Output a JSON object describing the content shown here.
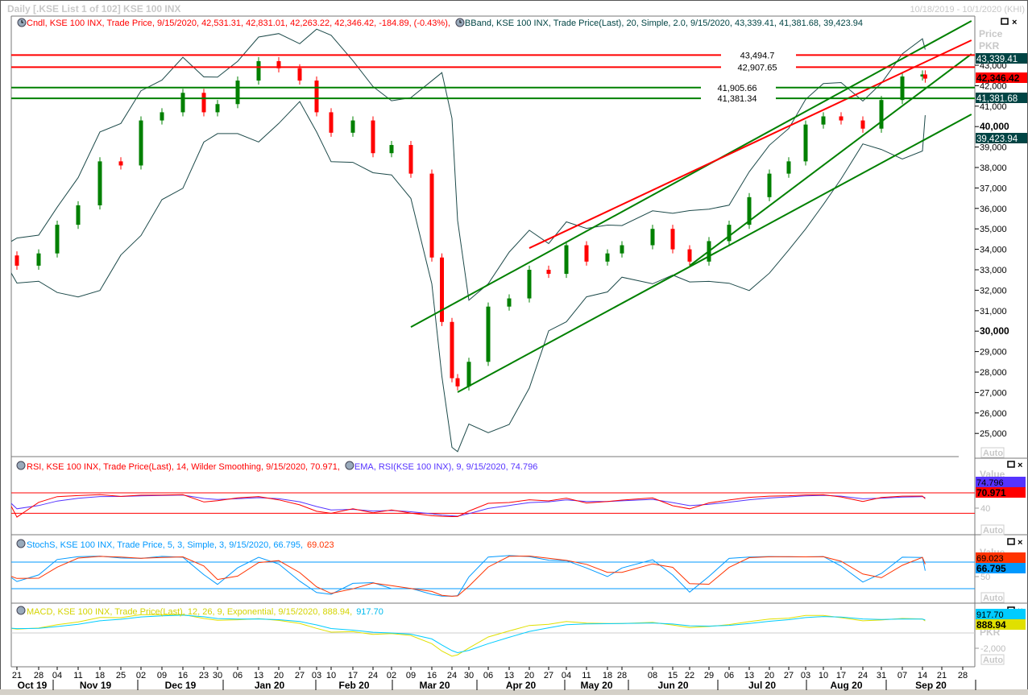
{
  "window": {
    "title": "Daily [.KSE List 1 of 102] KSE 100 INX",
    "date_range": "10/18/2019 - 10/1/2020 (KHI)"
  },
  "legends": {
    "candle": "Cndl, KSE 100 INX, Trade Price, 9/15/2020, 42,531.31, 42,831.01, 42,263.22, 42,346.42, -184.89, (-0.43%),",
    "bband": "BBand, KSE 100 INX, Trade Price(Last),  20, Simple, 2.0, 9/15/2020, 43,339.41, 41,381.68, 39,423.94",
    "rsi": "RSI, KSE 100 INX, Trade Price(Last),  14, Wilder Smoothing, 9/15/2020, 70.971,",
    "ema": "EMA, RSI(KSE 100 INX),  9, 9/15/2020, 74.796",
    "stoch": "StochS, KSE 100 INX, Trade Price,  5, 3, Simple, 3, 9/15/2020, 66.795,",
    "stoch_d": "69.023",
    "macd": "MACD, KSE 100 INX, Trade Price(Last),  12, 26, 9, Exponential, 9/15/2020, 888.94,",
    "macd_signal": "917.70"
  },
  "axes": {
    "price_title": "Price",
    "price_unit": "PKR",
    "price_ticks": [
      "43,000",
      "42,000",
      "41,000",
      "40,000",
      "39,000",
      "38,000",
      "37,000",
      "36,000",
      "35,000",
      "34,000",
      "33,000",
      "32,000",
      "31,000",
      "30,000",
      "29,000",
      "28,000",
      "27,000",
      "26,000",
      "25,000"
    ],
    "value_title": "Value",
    "rsi_tick": "40",
    "stoch_tick": "50",
    "macd_unit": "PKR",
    "macd_tick": "-2,000",
    "auto_label": "Auto"
  },
  "value_tags": {
    "bb_upper": "43,339.41",
    "last_price": "42,346.42",
    "bb_middle": "41,381.68",
    "bb_lower": "39,423.94",
    "ema": "74.796",
    "rsi": "70.971",
    "stoch_d": "69.023",
    "stoch_k": "66.795",
    "macd_signal": "917.70",
    "macd": "888.94"
  },
  "colors": {
    "up": "#008000",
    "down": "#ff0000",
    "bband": "#1d4a4a",
    "tag_bg": "#004444",
    "rsi": "#ff0000",
    "ema": "#5533ff",
    "stoch_k": "#0099ff",
    "stoch_d": "#ff3300",
    "macd": "#e0e000",
    "macd_signal": "#00ccff"
  },
  "x_axis": {
    "ticks": [
      {
        "d": "2019-10-21",
        "label": "21"
      },
      {
        "d": "2019-10-28",
        "label": "28"
      },
      {
        "d": "2019-11-04",
        "label": "04"
      },
      {
        "d": "2019-11-11",
        "label": "11"
      },
      {
        "d": "2019-11-18",
        "label": "18"
      },
      {
        "d": "2019-11-25",
        "label": "25"
      },
      {
        "d": "2019-12-02",
        "label": "02"
      },
      {
        "d": "2019-12-09",
        "label": "09"
      },
      {
        "d": "2019-12-16",
        "label": "16"
      },
      {
        "d": "2019-12-23",
        "label": "23"
      },
      {
        "d": "2019-12-30",
        "label": "30"
      },
      {
        "d": "2020-01-06",
        "label": "06"
      },
      {
        "d": "2020-01-13",
        "label": "13"
      },
      {
        "d": "2020-01-20",
        "label": "20"
      },
      {
        "d": "2020-01-27",
        "label": "27"
      },
      {
        "d": "2020-02-03",
        "label": "03"
      },
      {
        "d": "2020-02-10",
        "label": "10"
      },
      {
        "d": "2020-02-17",
        "label": "17"
      },
      {
        "d": "2020-02-24",
        "label": "24"
      },
      {
        "d": "2020-03-02",
        "label": "02"
      },
      {
        "d": "2020-03-09",
        "label": "09"
      },
      {
        "d": "2020-03-16",
        "label": "16"
      },
      {
        "d": "2020-03-24",
        "label": "24"
      },
      {
        "d": "2020-03-30",
        "label": "30"
      },
      {
        "d": "2020-04-06",
        "label": "06"
      },
      {
        "d": "2020-04-13",
        "label": "13"
      },
      {
        "d": "2020-04-20",
        "label": "20"
      },
      {
        "d": "2020-04-27",
        "label": "27"
      },
      {
        "d": "2020-05-04",
        "label": "04"
      },
      {
        "d": "2020-05-11",
        "label": "11"
      },
      {
        "d": "2020-05-18",
        "label": "18"
      },
      {
        "d": "2020-05-28",
        "label": "28"
      },
      {
        "d": "2020-06-08",
        "label": "08"
      },
      {
        "d": "2020-06-15",
        "label": "15"
      },
      {
        "d": "2020-06-22",
        "label": "22"
      },
      {
        "d": "2020-06-29",
        "label": "29"
      },
      {
        "d": "2020-07-06",
        "label": "06"
      },
      {
        "d": "2020-07-13",
        "label": "13"
      },
      {
        "d": "2020-07-20",
        "label": "20"
      },
      {
        "d": "2020-07-27",
        "label": "27"
      },
      {
        "d": "2020-08-03",
        "label": "03"
      },
      {
        "d": "2020-08-10",
        "label": "10"
      },
      {
        "d": "2020-08-17",
        "label": "17"
      },
      {
        "d": "2020-08-24",
        "label": "24"
      },
      {
        "d": "2020-08-31",
        "label": "31"
      },
      {
        "d": "2020-09-07",
        "label": "07"
      },
      {
        "d": "2020-09-14",
        "label": "14"
      },
      {
        "d": "2020-09-21",
        "label": "21"
      },
      {
        "d": "2020-09-28",
        "label": "28"
      }
    ],
    "months": [
      "Oct 19",
      "Nov 19",
      "Dec 19",
      "Jan 20",
      "Feb 20",
      "Mar 20",
      "Apr 20",
      "May 20",
      "Jun 20",
      "Jul 20",
      "Aug 20",
      "Sep 20"
    ]
  },
  "chart_data": {
    "type": "candlestick",
    "ylim": [
      24500,
      44500
    ],
    "dates": [
      "2019-10-18",
      "2019-10-21",
      "2019-10-28",
      "2019-11-04",
      "2019-11-11",
      "2019-11-18",
      "2019-11-25",
      "2019-12-02",
      "2019-12-09",
      "2019-12-16",
      "2019-12-23",
      "2019-12-30",
      "2020-01-06",
      "2020-01-13",
      "2020-01-20",
      "2020-01-27",
      "2020-02-03",
      "2020-02-10",
      "2020-02-17",
      "2020-02-24",
      "2020-03-02",
      "2020-03-09",
      "2020-03-16",
      "2020-03-20",
      "2020-03-24",
      "2020-03-26",
      "2020-03-30",
      "2020-04-06",
      "2020-04-13",
      "2020-04-20",
      "2020-04-27",
      "2020-05-04",
      "2020-05-11",
      "2020-05-18",
      "2020-05-28",
      "2020-06-08",
      "2020-06-15",
      "2020-06-22",
      "2020-06-29",
      "2020-07-06",
      "2020-07-13",
      "2020-07-20",
      "2020-07-27",
      "2020-08-03",
      "2020-08-10",
      "2020-08-17",
      "2020-08-24",
      "2020-08-31",
      "2020-09-07",
      "2020-09-14",
      "2020-09-15"
    ],
    "close": [
      33700,
      33200,
      33800,
      35200,
      36150,
      38300,
      38100,
      40300,
      40700,
      41650,
      40700,
      41100,
      42250,
      43200,
      42850,
      42250,
      40700,
      39700,
      40300,
      38700,
      39100,
      37700,
      33600,
      30450,
      27700,
      27300,
      28500,
      31200,
      31600,
      33000,
      32800,
      34200,
      33400,
      33800,
      34200,
      35000,
      34000,
      33400,
      34400,
      35200,
      36550,
      37700,
      38300,
      40100,
      40500,
      40300,
      39900,
      41300,
      42450,
      42550,
      42346.42
    ],
    "last_bar": {
      "date": "9/15/2020",
      "open": 42531.31,
      "high": 42831.01,
      "low": 42263.22,
      "close": 42346.42,
      "change": -184.89,
      "change_pct": -0.43
    },
    "bband_last": {
      "upper": 43339.41,
      "middle": 41381.68,
      "lower": 39423.94
    },
    "horizontal_levels": [
      {
        "value": 43494.7,
        "label": "43,494.7",
        "color": "#ff0000"
      },
      {
        "value": 42907.65,
        "label": "42,907.65",
        "color": "#ff0000"
      },
      {
        "value": 41905.66,
        "label": "41,905.66",
        "color": "#008000"
      },
      {
        "value": 41381.34,
        "label": "41,381.34",
        "color": "#008000"
      }
    ],
    "trendlines": [
      {
        "from": [
          "2020-03-09",
          30200
        ],
        "to": [
          "2020-10-01",
          45165
        ],
        "color": "#008000"
      },
      {
        "from": [
          "2020-04-20",
          34060
        ],
        "to": [
          "2020-10-01",
          44220
        ],
        "color": "#ff0000"
      },
      {
        "from": [
          "2020-03-26",
          27015
        ],
        "to": [
          "2020-10-01",
          40600
        ],
        "color": "#008000"
      },
      {
        "from": [
          "2020-06-22",
          33200
        ],
        "to": [
          "2020-10-01",
          43550
        ],
        "color": "#008000"
      }
    ],
    "rsi_levels": [
      70,
      30
    ],
    "stoch_levels": [
      80,
      20
    ],
    "last_values": {
      "rsi": 70.971,
      "rsi_ema": 74.796,
      "stoch_k": 66.795,
      "stoch_d": 69.023,
      "macd": 888.94,
      "macd_signal": 917.7
    }
  }
}
